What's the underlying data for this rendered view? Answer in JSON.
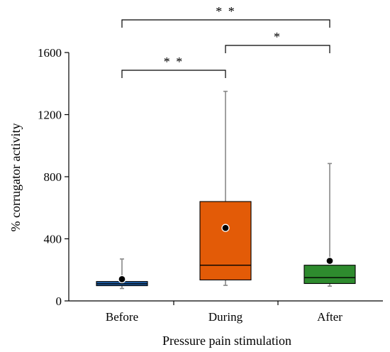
{
  "chart_data": {
    "type": "boxplot",
    "xlabel": "Pressure pain stimulation",
    "ylabel": "% corrugator activity",
    "ylim": [
      0,
      1600
    ],
    "yticks": [
      0,
      400,
      800,
      1200,
      1600
    ],
    "grid": false,
    "categories": [
      "Before",
      "During",
      "After"
    ],
    "boxes": [
      {
        "category": "Before",
        "min": 80,
        "q1": 98,
        "median": 110,
        "q3": 125,
        "max": 270,
        "mean": 140,
        "color": "#1f5fa8"
      },
      {
        "category": "During",
        "min": 100,
        "q1": 135,
        "median": 230,
        "q3": 640,
        "max": 1350,
        "mean": 470,
        "color": "#e35b07"
      },
      {
        "category": "After",
        "min": 95,
        "q1": 112,
        "median": 150,
        "q3": 230,
        "max": 885,
        "mean": 258,
        "color": "#2e8b2e"
      }
    ],
    "significance": [
      {
        "from": "Before",
        "to": "During",
        "label": "* *"
      },
      {
        "from": "During",
        "to": "After",
        "label": "*"
      },
      {
        "from": "Before",
        "to": "After",
        "label": "* *"
      }
    ]
  }
}
